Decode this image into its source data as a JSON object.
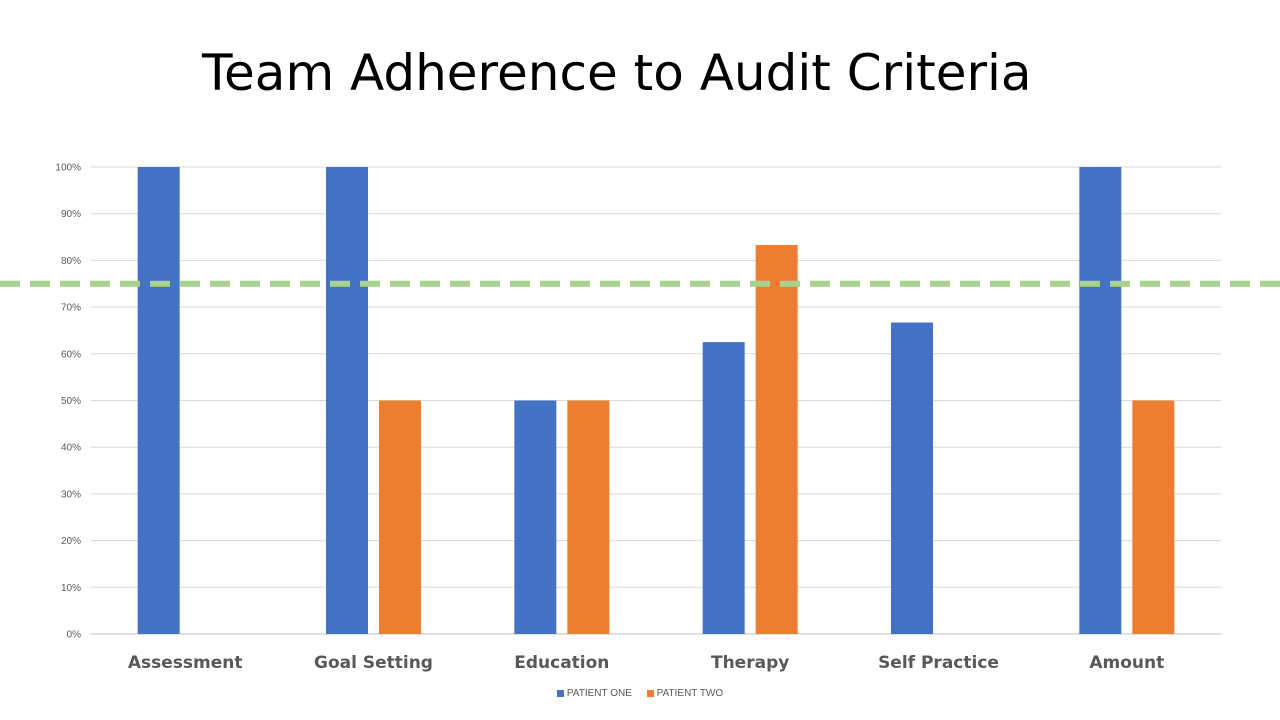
{
  "chart_data": {
    "type": "bar",
    "title": "Team Adherence to Audit Criteria",
    "categories": [
      "Assessment",
      "Goal Setting",
      "Education",
      "Therapy",
      "Self Practice",
      "Amount"
    ],
    "series": [
      {
        "name": "PATIENT ONE",
        "color": "#4472C4",
        "values": [
          100,
          100,
          50,
          62.5,
          66.7,
          100
        ]
      },
      {
        "name": "PATIENT TWO",
        "color": "#ED7D31",
        "values": [
          null,
          50,
          50,
          83.3,
          null,
          50
        ]
      }
    ],
    "y_ticks": [
      "0%",
      "10%",
      "20%",
      "30%",
      "40%",
      "50%",
      "60%",
      "70%",
      "80%",
      "90%",
      "100%"
    ],
    "ylim": [
      0,
      100
    ],
    "reference_line": {
      "value": 75,
      "color": "#A9D18E",
      "style": "dashed"
    },
    "grid": true,
    "legend_position": "bottom"
  }
}
